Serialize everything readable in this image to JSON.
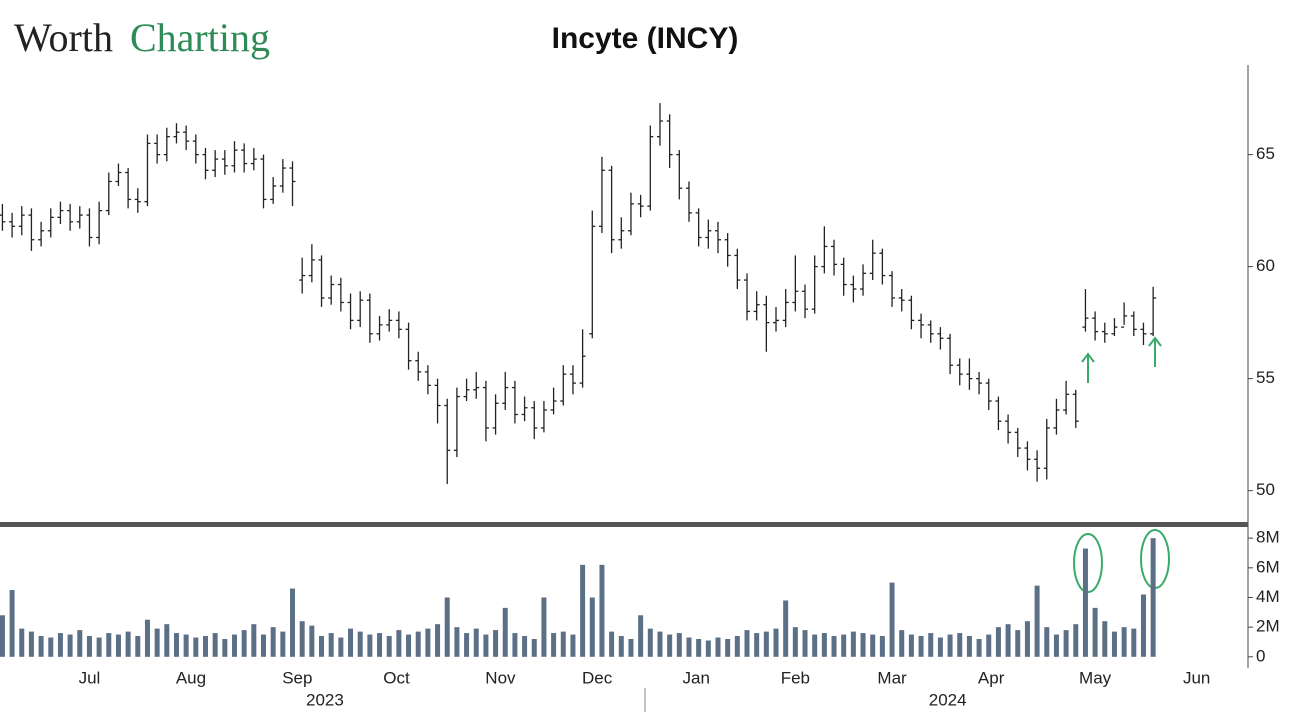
{
  "header": {
    "logo_dark": "Worth",
    "logo_accent": "Charting"
  },
  "chart_data": [
    {
      "type": "ohlc",
      "title": "Incyte (INCY)",
      "color": "#222222",
      "x": [
        0,
        2,
        4,
        6,
        8,
        10,
        12,
        14,
        16,
        18,
        20,
        22,
        24,
        26,
        28,
        30,
        32,
        34,
        36,
        38,
        40,
        42,
        44,
        46,
        48,
        50,
        52,
        54,
        56,
        58,
        60,
        62,
        64,
        66,
        68,
        70,
        72,
        74,
        76,
        78,
        80,
        82,
        84,
        86,
        88,
        90,
        92,
        94,
        96,
        98,
        100,
        102,
        104,
        106,
        108,
        110,
        112,
        114,
        116,
        118,
        120,
        122,
        124,
        126,
        128,
        130,
        132,
        134,
        136,
        138,
        140,
        142,
        144,
        146,
        148,
        150,
        152,
        154,
        156,
        158,
        160,
        162,
        164,
        166,
        168,
        170,
        172,
        174,
        176,
        178,
        180,
        182,
        184,
        186,
        188,
        190,
        192,
        194,
        196,
        198,
        200,
        202,
        204,
        206,
        208,
        210,
        212,
        214,
        216,
        218,
        220,
        222,
        224,
        226,
        228,
        230,
        232,
        234,
        236,
        238
      ],
      "open": [
        62.3,
        62.0,
        61.8,
        62.3,
        61.2,
        61.6,
        62.2,
        62.5,
        62.0,
        62.3,
        61.3,
        62.5,
        63.8,
        64.2,
        63.0,
        62.9,
        65.5,
        65.0,
        65.8,
        66.0,
        65.6,
        65.0,
        64.3,
        64.8,
        64.5,
        65.2,
        64.6,
        64.8,
        63.0,
        63.6,
        64.4,
        59.4,
        59.6,
        60.3,
        58.6,
        59.2,
        58.4,
        57.6,
        58.5,
        57.0,
        57.4,
        57.6,
        57.2,
        55.8,
        55.3,
        54.7,
        53.8,
        51.8,
        54.2,
        54.5,
        54.6,
        52.8,
        53.9,
        54.6,
        53.4,
        53.7,
        52.8,
        53.6,
        54.0,
        55.2,
        54.8,
        57.0,
        61.8,
        64.3,
        61.2,
        61.6,
        62.8,
        62.7,
        65.8,
        66.5,
        65.0,
        63.5,
        62.4,
        61.3,
        61.6,
        61.2,
        60.5,
        59.4,
        58.0,
        58.3,
        57.5,
        57.6,
        58.4,
        58.9,
        58.1,
        60.0,
        60.9,
        60.1,
        59.2,
        59.0,
        59.7,
        60.6,
        59.6,
        58.6,
        58.5,
        57.6,
        57.4,
        57.0,
        56.8,
        55.6,
        55.2,
        55.0,
        54.8,
        54.0,
        53.1,
        52.6,
        51.9,
        51.4,
        51.0,
        52.8,
        53.6,
        54.3,
        57.3,
        57.7,
        57.1,
        57.0,
        57.3,
        57.8,
        57.2,
        57.0
      ],
      "high": [
        62.8,
        62.4,
        62.7,
        62.6,
        62.0,
        62.6,
        62.9,
        62.8,
        62.7,
        62.6,
        62.9,
        64.2,
        64.6,
        64.4,
        63.5,
        65.9,
        65.9,
        66.2,
        66.4,
        66.3,
        65.9,
        65.3,
        65.2,
        65.2,
        65.6,
        65.5,
        65.3,
        65.0,
        64.0,
        64.8,
        64.7,
        60.4,
        61.0,
        60.5,
        59.6,
        59.5,
        58.8,
        58.9,
        58.8,
        57.8,
        58.1,
        58.0,
        57.5,
        56.2,
        55.6,
        55.0,
        54.1,
        54.6,
        55.0,
        55.3,
        54.9,
        54.3,
        55.3,
        54.9,
        54.2,
        54.0,
        54.0,
        54.6,
        55.6,
        55.6,
        57.2,
        62.5,
        64.9,
        64.5,
        62.2,
        63.3,
        63.2,
        66.3,
        67.3,
        66.8,
        65.2,
        63.8,
        62.6,
        62.1,
        62.0,
        61.5,
        60.8,
        59.7,
        58.9,
        58.7,
        58.2,
        59.0,
        60.5,
        59.2,
        60.5,
        61.8,
        61.2,
        60.4,
        59.6,
        60.1,
        61.2,
        60.8,
        59.8,
        59.0,
        58.7,
        57.9,
        57.6,
        57.3,
        57.0,
        55.9,
        55.9,
        55.3,
        55.0,
        54.2,
        53.4,
        52.8,
        52.2,
        51.8,
        53.2,
        54.1,
        54.9,
        54.5,
        59.0,
        58.0,
        57.5,
        57.7,
        58.4,
        58.0,
        57.5,
        59.1
      ],
      "low": [
        61.6,
        61.3,
        61.4,
        60.7,
        60.9,
        61.3,
        61.9,
        61.6,
        61.7,
        60.9,
        61.0,
        62.3,
        63.6,
        62.6,
        62.4,
        62.7,
        64.6,
        64.7,
        65.5,
        65.2,
        64.6,
        63.9,
        64.0,
        64.1,
        64.2,
        64.2,
        64.3,
        62.6,
        62.8,
        63.3,
        62.7,
        58.8,
        59.3,
        58.2,
        58.3,
        58.0,
        57.2,
        57.3,
        56.6,
        56.7,
        57.1,
        56.8,
        55.4,
        54.9,
        54.3,
        53.0,
        50.3,
        51.5,
        54.0,
        54.1,
        52.2,
        52.5,
        53.6,
        53.0,
        53.1,
        52.3,
        52.6,
        53.4,
        53.8,
        54.3,
        54.6,
        56.8,
        61.5,
        60.6,
        60.8,
        61.4,
        62.2,
        62.5,
        65.4,
        64.4,
        63.0,
        62.0,
        60.9,
        60.8,
        60.6,
        60.0,
        59.0,
        57.6,
        57.6,
        56.2,
        57.1,
        57.3,
        58.0,
        57.7,
        57.9,
        59.7,
        59.6,
        58.7,
        58.4,
        58.7,
        59.4,
        59.2,
        58.2,
        58.0,
        57.2,
        56.8,
        56.6,
        56.3,
        55.2,
        54.7,
        54.5,
        54.3,
        53.6,
        52.7,
        52.1,
        51.5,
        50.9,
        50.4,
        50.5,
        52.5,
        53.4,
        52.8,
        57.1,
        56.7,
        56.6,
        56.9,
        57.4,
        56.9,
        56.5,
        56.9
      ],
      "close": [
        62.0,
        61.8,
        62.3,
        61.2,
        61.6,
        62.2,
        62.5,
        62.0,
        62.3,
        61.3,
        62.5,
        63.8,
        64.2,
        63.0,
        62.9,
        65.5,
        65.0,
        65.8,
        66.0,
        65.6,
        65.0,
        64.3,
        64.8,
        64.5,
        65.2,
        64.6,
        64.8,
        63.0,
        63.6,
        64.4,
        63.8,
        59.6,
        60.3,
        58.6,
        59.2,
        58.4,
        57.6,
        58.5,
        57.0,
        57.4,
        57.6,
        57.2,
        55.8,
        55.3,
        54.7,
        53.8,
        51.8,
        54.2,
        54.5,
        54.6,
        52.8,
        53.9,
        54.6,
        53.4,
        53.7,
        52.8,
        53.6,
        54.0,
        55.2,
        54.8,
        56.0,
        61.8,
        64.3,
        61.2,
        61.6,
        62.8,
        62.7,
        65.8,
        66.5,
        65.0,
        63.5,
        62.4,
        61.3,
        61.6,
        61.2,
        60.5,
        59.4,
        58.0,
        58.3,
        57.5,
        57.6,
        58.4,
        58.9,
        58.1,
        60.0,
        60.9,
        60.1,
        59.2,
        59.0,
        59.7,
        60.6,
        59.6,
        58.6,
        58.5,
        57.6,
        57.4,
        57.0,
        56.8,
        55.6,
        55.2,
        55.0,
        54.8,
        54.0,
        53.1,
        52.6,
        51.9,
        51.4,
        51.0,
        52.8,
        53.6,
        54.3,
        53.1,
        57.7,
        57.1,
        57.0,
        57.3,
        57.8,
        57.2,
        57.0,
        58.6
      ],
      "xlim": [
        -0.5,
        257
      ],
      "ylim": [
        48.6,
        69.0
      ],
      "yticks": [
        50,
        55,
        60,
        65
      ],
      "grid": false
    },
    {
      "type": "bar",
      "color": "#5b6f86",
      "x": [
        0,
        2,
        4,
        6,
        8,
        10,
        12,
        14,
        16,
        18,
        20,
        22,
        24,
        26,
        28,
        30,
        32,
        34,
        36,
        38,
        40,
        42,
        44,
        46,
        48,
        50,
        52,
        54,
        56,
        58,
        60,
        62,
        64,
        66,
        68,
        70,
        72,
        74,
        76,
        78,
        80,
        82,
        84,
        86,
        88,
        90,
        92,
        94,
        96,
        98,
        100,
        102,
        104,
        106,
        108,
        110,
        112,
        114,
        116,
        118,
        120,
        122,
        124,
        126,
        128,
        130,
        132,
        134,
        136,
        138,
        140,
        142,
        144,
        146,
        148,
        150,
        152,
        154,
        156,
        158,
        160,
        162,
        164,
        166,
        168,
        170,
        172,
        174,
        176,
        178,
        180,
        182,
        184,
        186,
        188,
        190,
        192,
        194,
        196,
        198,
        200,
        202,
        204,
        206,
        208,
        210,
        212,
        214,
        216,
        218,
        220,
        222,
        224,
        226,
        228,
        230,
        232,
        234,
        236,
        238
      ],
      "values": [
        2.8,
        4.5,
        1.9,
        1.7,
        1.4,
        1.3,
        1.6,
        1.5,
        1.8,
        1.4,
        1.3,
        1.6,
        1.5,
        1.7,
        1.4,
        2.5,
        1.9,
        2.2,
        1.6,
        1.5,
        1.3,
        1.4,
        1.6,
        1.2,
        1.5,
        1.8,
        2.2,
        1.5,
        2.0,
        1.7,
        4.6,
        2.4,
        2.1,
        1.4,
        1.6,
        1.3,
        1.9,
        1.7,
        1.5,
        1.6,
        1.4,
        1.8,
        1.5,
        1.7,
        1.9,
        2.2,
        4.0,
        2.0,
        1.6,
        1.9,
        1.5,
        1.8,
        3.3,
        1.6,
        1.4,
        1.2,
        4.0,
        1.6,
        1.7,
        1.5,
        6.2,
        4.0,
        6.2,
        1.7,
        1.4,
        1.2,
        2.8,
        1.9,
        1.7,
        1.5,
        1.6,
        1.3,
        1.2,
        1.1,
        1.3,
        1.2,
        1.4,
        1.8,
        1.6,
        1.7,
        1.9,
        3.8,
        2.0,
        1.8,
        1.5,
        1.6,
        1.4,
        1.5,
        1.7,
        1.6,
        1.5,
        1.4,
        5.0,
        1.8,
        1.5,
        1.4,
        1.6,
        1.3,
        1.5,
        1.6,
        1.4,
        1.2,
        1.5,
        2.0,
        2.2,
        1.8,
        2.4,
        4.8,
        2.0,
        1.5,
        1.8,
        2.2,
        7.3,
        3.3,
        2.4,
        1.7,
        2.0,
        1.9,
        4.2,
        8.0
      ],
      "xlim": [
        -0.5,
        257
      ],
      "ylim": [
        -0.35,
        8.55
      ],
      "yticks": [
        0,
        {
          "value": 2,
          "label": "2M"
        },
        {
          "value": 4,
          "label": "4M"
        },
        {
          "value": 6,
          "label": "6M"
        },
        {
          "value": 8,
          "label": "8M"
        }
      ],
      "xticks": [
        {
          "value": 18,
          "label": "Jul"
        },
        {
          "value": 39,
          "label": "Aug"
        },
        {
          "value": 61,
          "label": "Sep"
        },
        {
          "value": 81.5,
          "label": "Oct"
        },
        {
          "value": 103,
          "label": "Nov"
        },
        {
          "value": 123,
          "label": "Dec"
        },
        {
          "value": 143.5,
          "label": "Jan"
        },
        {
          "value": 164,
          "label": "Feb"
        },
        {
          "value": 184,
          "label": "Mar"
        },
        {
          "value": 204.5,
          "label": "Apr"
        },
        {
          "value": 226,
          "label": "May"
        },
        {
          "value": 247,
          "label": "Jun"
        }
      ],
      "year_labels": [
        {
          "value": 66.7,
          "label": "2023"
        },
        {
          "value": 195.5,
          "label": "2024"
        }
      ]
    }
  ]
}
